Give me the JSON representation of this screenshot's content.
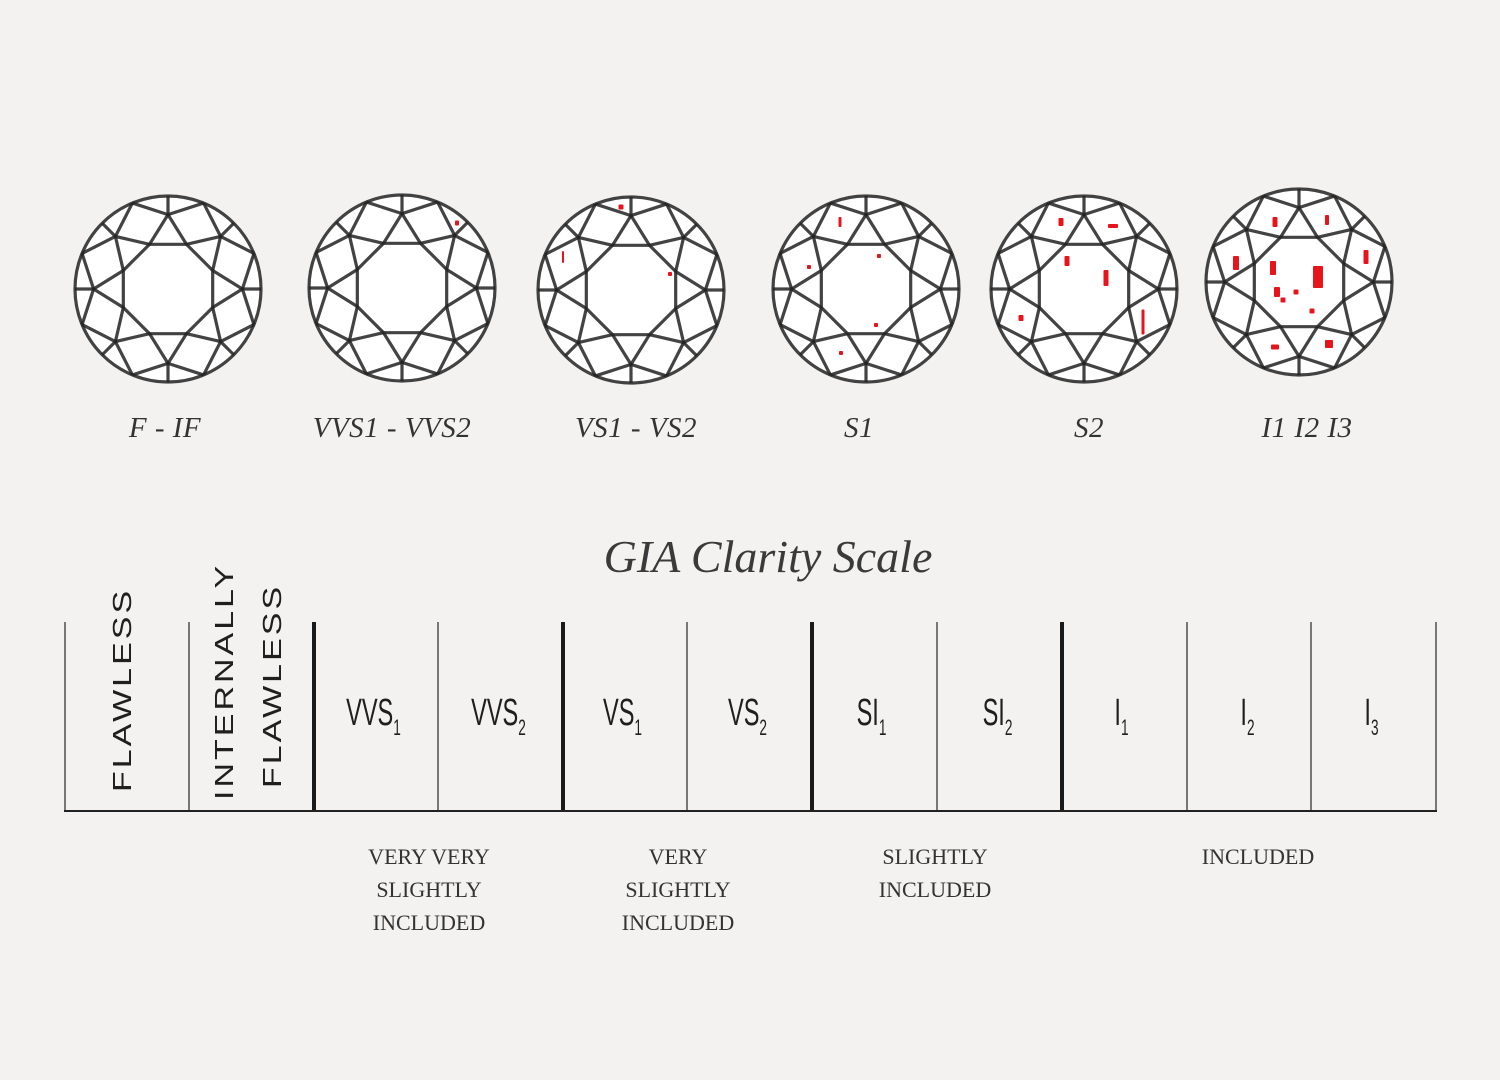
{
  "colors": {
    "background": "#f3f2f0",
    "facet_lines": "#222222",
    "inclusions": "#e8141b",
    "text": "#333333"
  },
  "diamonds": [
    {
      "label": "F - IF"
    },
    {
      "label": "VVS1 - VVS2"
    },
    {
      "label": "VS1 - VS2"
    },
    {
      "label": "S1"
    },
    {
      "label": "S2"
    },
    {
      "label": "I1  I2  I3"
    }
  ],
  "title": "GIA Clarity Scale",
  "scale": {
    "vertical_grades": [
      "FLAWLESS",
      "INTERNALLY",
      "FLAWLESS"
    ],
    "grades": [
      {
        "base": "VVS",
        "sub": "1"
      },
      {
        "base": "VVS",
        "sub": "2"
      },
      {
        "base": "VS",
        "sub": "1"
      },
      {
        "base": "VS",
        "sub": "2"
      },
      {
        "base": "SI",
        "sub": "1"
      },
      {
        "base": "SI",
        "sub": "2"
      },
      {
        "base": "I",
        "sub": "1"
      },
      {
        "base": "I",
        "sub": "2"
      },
      {
        "base": "I",
        "sub": "3"
      }
    ],
    "groups": [
      {
        "lines": [
          "VERY VERY",
          "SLIGHTLY",
          "INCLUDED"
        ]
      },
      {
        "lines": [
          "VERY",
          "SLIGHTLY",
          "INCLUDED"
        ]
      },
      {
        "lines": [
          "SLIGHTLY",
          "INCLUDED"
        ]
      },
      {
        "lines": [
          "INCLUDED"
        ]
      }
    ]
  }
}
